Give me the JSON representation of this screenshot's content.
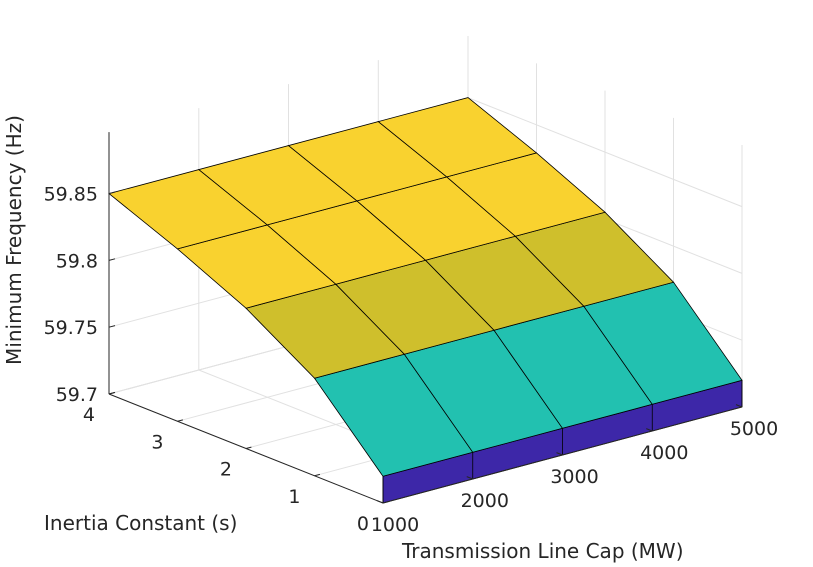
{
  "chart_data": {
    "type": "surface",
    "title": "",
    "xlabel": "Transmission Line Cap (MW)",
    "ylabel": "Inertia Constant (s)",
    "zlabel": "Minimum Frequency (Hz)",
    "x": [
      1000,
      2000,
      3000,
      4000,
      5000
    ],
    "y": [
      0,
      1,
      2,
      3,
      4
    ],
    "z_rows_by_inertia": [
      [
        59.72,
        59.72,
        59.72,
        59.72,
        59.72
      ],
      [
        59.773,
        59.773,
        59.773,
        59.773,
        59.773
      ],
      [
        59.805,
        59.805,
        59.805,
        59.805,
        59.805
      ],
      [
        59.829,
        59.829,
        59.829,
        59.829,
        59.829
      ],
      [
        59.85,
        59.85,
        59.85,
        59.85,
        59.85
      ]
    ],
    "xlim": [
      1000,
      5000
    ],
    "ylim": [
      0,
      4
    ],
    "zlim": [
      59.7,
      59.85
    ],
    "x_ticks": [
      "1000",
      "2000",
      "3000",
      "4000",
      "5000"
    ],
    "y_ticks": [
      "0",
      "1",
      "2",
      "3",
      "4"
    ],
    "z_ticks": [
      "59.7",
      "59.75",
      "59.8",
      "59.85"
    ],
    "grid": true,
    "band_colors": [
      "#3d27a8",
      "#22c1b0",
      "#cfbf2c",
      "#f9d22f"
    ]
  }
}
